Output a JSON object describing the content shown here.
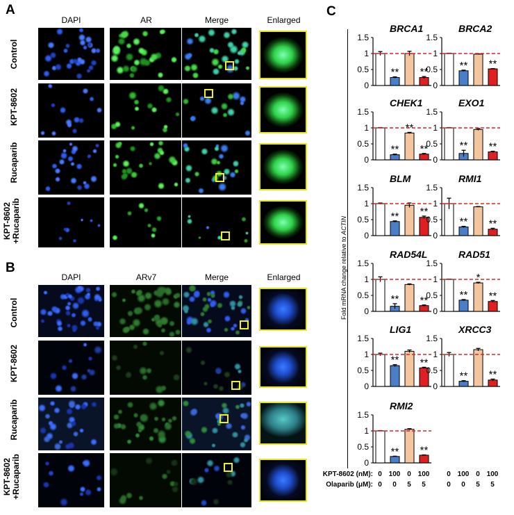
{
  "panel_a": {
    "letter": "A",
    "columns": [
      "DAPI",
      "AR",
      "Merge",
      "Enlarged"
    ],
    "rows": [
      "Control",
      "KPT-8602",
      "Rucaparib",
      "KPT-8602\n+Rucaparib"
    ]
  },
  "panel_b": {
    "letter": "B",
    "columns": [
      "DAPI",
      "ARv7",
      "Merge",
      "Enlarged"
    ],
    "rows": [
      "Control",
      "KPT-8602",
      "Rucaparib",
      "KPT-8602\n+Rucaparib"
    ]
  },
  "panel_c": {
    "letter": "C",
    "ylabel_prefix": "Fold mRNA change relative to ",
    "ylabel_gene": "ACTIN",
    "treatment_rows": [
      {
        "label": "KPT-8602 (nM):",
        "values": [
          "0",
          "100",
          "0",
          "100"
        ]
      },
      {
        "label": "Olaparib (μM):",
        "values": [
          "0",
          "0",
          "5",
          "5"
        ]
      }
    ]
  },
  "colors": {
    "bar_control": "#ffffff",
    "bar_kpt": "#4a7fc8",
    "bar_olaparib": "#f4c6a0",
    "bar_combo": "#e02020",
    "reference_line": "#e02020",
    "dapi": "#2f5cf0",
    "ar": "#38d038",
    "zoom_box": "#f0f020"
  },
  "chart_data": [
    {
      "type": "bar",
      "title": "BRCA1",
      "ylim": [
        0,
        1.5
      ],
      "yticks": [
        "0",
        "0.5",
        "1",
        "1.5"
      ],
      "reference_line": 1,
      "values": [
        1.0,
        0.25,
        1.0,
        0.25
      ],
      "errors": [
        0.06,
        0.02,
        0.07,
        0.03
      ],
      "significance": [
        "",
        "**",
        "",
        "**"
      ]
    },
    {
      "type": "bar",
      "title": "BRCA2",
      "ylim": [
        0,
        1.5
      ],
      "yticks": [
        "0",
        "0.5",
        "1",
        "1.5"
      ],
      "reference_line": 1,
      "values": [
        1.0,
        0.46,
        0.98,
        0.52
      ],
      "errors": [
        0.01,
        0.02,
        0.01,
        0.01
      ],
      "significance": [
        "",
        "**",
        "",
        "**"
      ]
    },
    {
      "type": "bar",
      "title": "CHEK1",
      "ylim": [
        0,
        1.5
      ],
      "yticks": [
        "0",
        "0.5",
        "1",
        "1.5"
      ],
      "reference_line": 1,
      "values": [
        1.0,
        0.16,
        0.84,
        0.18
      ],
      "errors": [
        0.01,
        0.02,
        0.02,
        0.02
      ],
      "significance": [
        "",
        "**",
        "**",
        "**"
      ]
    },
    {
      "type": "bar",
      "title": "EXO1",
      "ylim": [
        0,
        1.5
      ],
      "yticks": [
        "0",
        "0.5",
        "1",
        "1.5"
      ],
      "reference_line": 1,
      "values": [
        1.0,
        0.2,
        0.95,
        0.25
      ],
      "errors": [
        0.01,
        0.1,
        0.03,
        0.02
      ],
      "significance": [
        "",
        "**",
        "",
        "**"
      ]
    },
    {
      "type": "bar",
      "title": "BLM",
      "ylim": [
        0,
        1.5
      ],
      "yticks": [
        "0",
        "0.5",
        "1",
        "1.5"
      ],
      "reference_line": 1,
      "values": [
        1.0,
        0.44,
        0.95,
        0.57
      ],
      "errors": [
        0.02,
        0.02,
        0.07,
        0.04
      ],
      "significance": [
        "",
        "**",
        "",
        "**"
      ]
    },
    {
      "type": "bar",
      "title": "RMI1",
      "ylim": [
        0,
        1.5
      ],
      "yticks": [
        "0",
        "0.5",
        "1",
        "1.5"
      ],
      "reference_line": 1,
      "values": [
        1.0,
        0.27,
        0.9,
        0.2
      ],
      "errors": [
        0.17,
        0.02,
        0.01,
        0.03
      ],
      "significance": [
        "",
        "**",
        "",
        "**"
      ]
    },
    {
      "type": "bar",
      "title": "RAD54L",
      "ylim": [
        0,
        1.5
      ],
      "yticks": [
        "0",
        "0.5",
        "1",
        "1.5"
      ],
      "reference_line": 1,
      "values": [
        1.0,
        0.16,
        0.84,
        0.18
      ],
      "errors": [
        0.08,
        0.08,
        0.02,
        0.02
      ],
      "significance": [
        "",
        "**",
        "",
        "**"
      ]
    },
    {
      "type": "bar",
      "title": "RAD51",
      "ylim": [
        0,
        1.5
      ],
      "yticks": [
        "0",
        "0.5",
        "1",
        "1.5"
      ],
      "reference_line": 1,
      "values": [
        1.0,
        0.35,
        0.89,
        0.31
      ],
      "errors": [
        0.01,
        0.02,
        0.02,
        0.03
      ],
      "significance": [
        "",
        "**",
        "*",
        "**"
      ]
    },
    {
      "type": "bar",
      "title": "LIG1",
      "ylim": [
        0,
        1.5
      ],
      "yticks": [
        "0",
        "0.5",
        "1",
        "1.5"
      ],
      "reference_line": 1,
      "values": [
        1.0,
        0.65,
        1.1,
        0.58
      ],
      "errors": [
        0.04,
        0.03,
        0.04,
        0.02
      ],
      "significance": [
        "",
        "**",
        "",
        "**"
      ]
    },
    {
      "type": "bar",
      "title": "XRCC3",
      "ylim": [
        0,
        1.5
      ],
      "yticks": [
        "0",
        "0.5",
        "1",
        "1.5"
      ],
      "reference_line": 1,
      "values": [
        1.0,
        0.16,
        1.15,
        0.2
      ],
      "errors": [
        0.06,
        0.02,
        0.04,
        0.03
      ],
      "significance": [
        "",
        "**",
        "",
        "**"
      ]
    },
    {
      "type": "bar",
      "title": "RMI2",
      "ylim": [
        0,
        1.5
      ],
      "yticks": [
        "0",
        "0.5",
        "1",
        "1.5"
      ],
      "reference_line": 1,
      "values": [
        1.0,
        0.2,
        1.05,
        0.24
      ],
      "errors": [
        0.01,
        0.01,
        0.02,
        0.01
      ],
      "significance": [
        "",
        "**",
        "",
        "**"
      ]
    }
  ]
}
